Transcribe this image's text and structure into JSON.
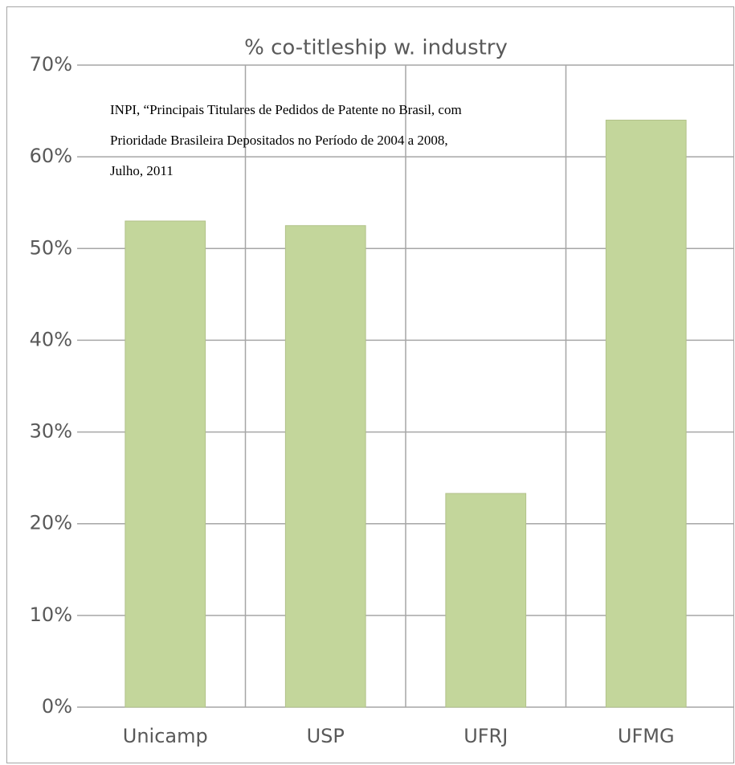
{
  "chart_data": {
    "type": "bar",
    "title": "% co-titleship w. industry",
    "annotation": [
      "INPI, “Principais Titulares de Pedidos de Patente no Brasil, com",
      "Prioridade Brasileira Depositados no Período de 2004 a 2008,",
      "Julho, 2011"
    ],
    "categories": [
      "Unicamp",
      "USP",
      "UFRJ",
      "UFMG"
    ],
    "values": [
      53,
      52.5,
      23.3,
      64
    ],
    "color": "#c3d69b",
    "ylim": [
      0,
      70
    ],
    "yticks": [
      {
        "value": 0,
        "label": "0%"
      },
      {
        "value": 10,
        "label": "10%"
      },
      {
        "value": 20,
        "label": "20%"
      },
      {
        "value": 30,
        "label": "30%"
      },
      {
        "value": 40,
        "label": "40%"
      },
      {
        "value": 50,
        "label": "50%"
      },
      {
        "value": 60,
        "label": "60%"
      },
      {
        "value": 70,
        "label": "70%"
      }
    ],
    "grid": true
  }
}
